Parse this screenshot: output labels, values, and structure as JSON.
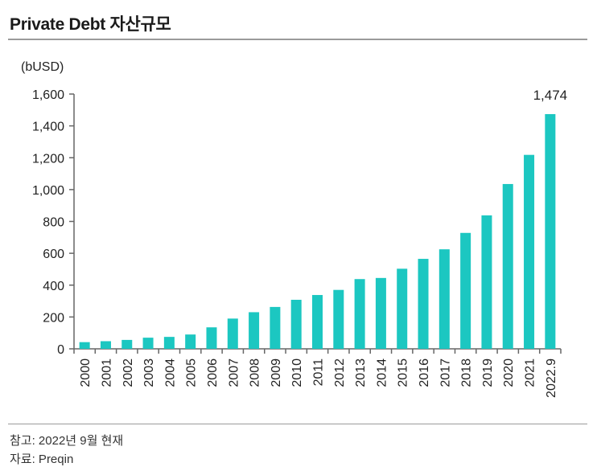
{
  "chart_data": {
    "type": "bar",
    "title": "Private Debt 자산규모",
    "unit_label": "(bUSD)",
    "xlabel": "",
    "ylabel": "",
    "categories": [
      "2000",
      "2001",
      "2002",
      "2003",
      "2004",
      "2005",
      "2006",
      "2007",
      "2008",
      "2009",
      "2010",
      "2011",
      "2012",
      "2013",
      "2014",
      "2015",
      "2016",
      "2017",
      "2018",
      "2019",
      "2020",
      "2021",
      "2022.9"
    ],
    "values": [
      42,
      48,
      56,
      70,
      75,
      90,
      135,
      190,
      230,
      263,
      308,
      338,
      370,
      438,
      445,
      503,
      565,
      625,
      728,
      838,
      1035,
      1218,
      1474
    ],
    "ylim": [
      0,
      1600
    ],
    "yticks": [
      0,
      200,
      400,
      600,
      800,
      1000,
      1200,
      1400,
      1600
    ],
    "ytick_labels": [
      "0",
      "200",
      "400",
      "600",
      "800",
      "1,000",
      "1,200",
      "1,400",
      "1,600"
    ],
    "annotations": [
      {
        "category": "2022.9",
        "text": "1,474"
      }
    ],
    "bar_color": "#1cc7c1",
    "axis_color": "#666666",
    "grid": false,
    "legend": "none"
  },
  "footnotes": {
    "note": "참고: 2022년 9월 현재",
    "source": "자료: Preqin"
  }
}
